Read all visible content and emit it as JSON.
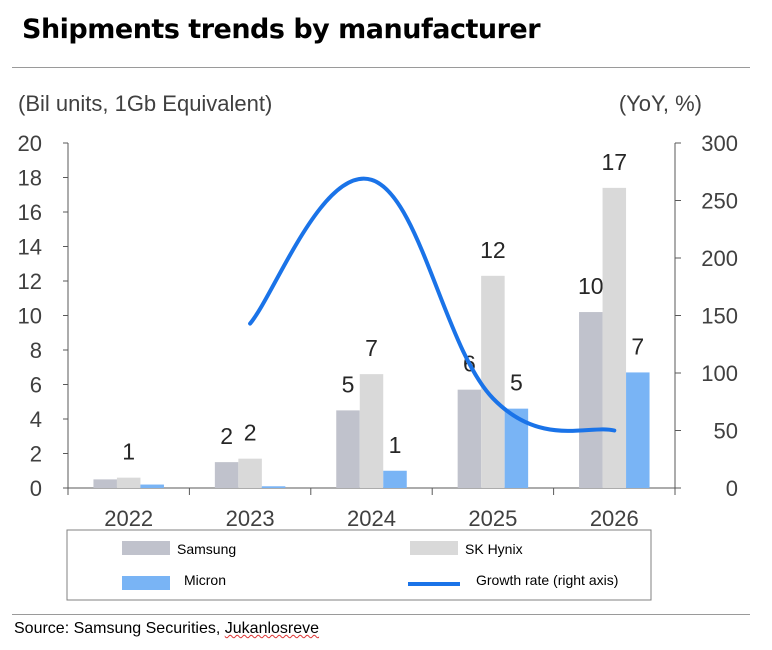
{
  "chart_data": {
    "type": "bar",
    "title": "Shipments trends by manufacturer",
    "ylabel": "(Bil units, 1Gb Equivalent)",
    "y2label": "(YoY, %)",
    "ylim": [
      0,
      20
    ],
    "y2lim": [
      0,
      300
    ],
    "yticks": [
      "0",
      "2",
      "4",
      "6",
      "8",
      "10",
      "12",
      "14",
      "16",
      "18",
      "20"
    ],
    "y2ticks": [
      "0",
      "50",
      "100",
      "150",
      "200",
      "250",
      "300"
    ],
    "categories": [
      "2022",
      "2023",
      "2024",
      "2025",
      "2026"
    ],
    "series": [
      {
        "name": "Samsung",
        "type": "bar",
        "color": "#c0c2cc",
        "values": [
          0.5,
          1.5,
          4.5,
          5.7,
          10.2
        ],
        "labels": [
          "",
          "2",
          "5",
          "6",
          "10"
        ]
      },
      {
        "name": "SK Hynix",
        "type": "bar",
        "color": "#d9d9d9",
        "values": [
          0.6,
          1.7,
          6.6,
          12.3,
          17.4
        ],
        "labels": [
          "1",
          "2",
          "7",
          "12",
          "17"
        ]
      },
      {
        "name": "Micron",
        "type": "bar",
        "color": "#79b4f5",
        "values": [
          0.2,
          0.1,
          1.0,
          4.6,
          6.7
        ],
        "labels": [
          "",
          "",
          "1",
          "5",
          "7"
        ]
      },
      {
        "name": "Growth rate (right axis)",
        "type": "line",
        "axis": "right",
        "color": "#1a73e8",
        "values": [
          null,
          143,
          268,
          78,
          50
        ]
      }
    ],
    "legend": "bottom",
    "grid": false
  },
  "source": {
    "prefix": "Source: Samsung Securities, ",
    "name": "Jukanlosreve"
  }
}
